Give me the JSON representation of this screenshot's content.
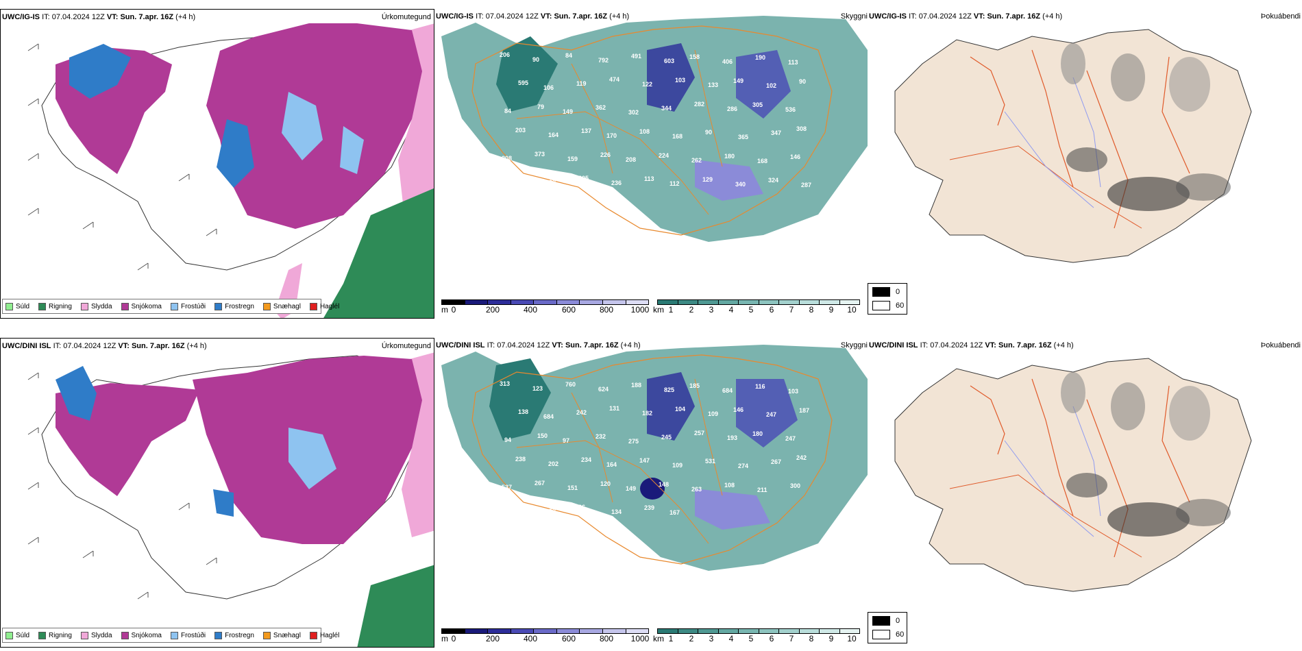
{
  "rows": [
    {
      "model": "UWC/IG-IS",
      "it_label": "IT:",
      "it_value": "07.04.2024 12Z",
      "vt_label": "VT:",
      "vt_value": "Sun. 7.apr. 16Z",
      "lead": "(+4 h)"
    },
    {
      "model": "UWC/DINI ISL",
      "it_label": "IT:",
      "it_value": "07.04.2024 12Z",
      "vt_label": "VT:",
      "vt_value": "Sun. 7.apr. 16Z",
      "lead": "(+4 h)"
    }
  ],
  "titles": {
    "precip_type": "Úrkomutegund",
    "visibility": "Skyggni",
    "fog": "Þokuábendi"
  },
  "precip_legend": [
    {
      "label": "Súld",
      "color": "#90ee90"
    },
    {
      "label": "Rigning",
      "color": "#2e8b57"
    },
    {
      "label": "Slydda",
      "color": "#f0a8d8"
    },
    {
      "label": "Snjókoma",
      "color": "#b03a96"
    },
    {
      "label": "Frostúði",
      "color": "#8ec3f0"
    },
    {
      "label": "Frostregn",
      "color": "#2f7cc8"
    },
    {
      "label": "Snæhagl",
      "color": "#f39a1e"
    },
    {
      "label": "Haglél",
      "color": "#e02020"
    }
  ],
  "ceiling_bar": {
    "unit": "m",
    "ticks": [
      "0",
      "200",
      "400",
      "600",
      "800",
      "1000"
    ],
    "colors": [
      "#000000",
      "#1a1a7a",
      "#2d2d9a",
      "#4a4ab5",
      "#6a6ac8",
      "#8b8bd8",
      "#a8a8e2",
      "#c5c5ec",
      "#ddddf5"
    ]
  },
  "vis_bar": {
    "unit": "km",
    "ticks": [
      "1",
      "2",
      "3",
      "4",
      "5",
      "6",
      "7",
      "8",
      "9",
      "10"
    ],
    "colors": [
      "#2a7a74",
      "#3d8a84",
      "#4f9993",
      "#63a8a2",
      "#78b6b1",
      "#8dc4bf",
      "#a3d1cd",
      "#b9dedb",
      "#cfe9e7",
      "#e6f4f2"
    ]
  },
  "cloud_legend": {
    "values": [
      "0",
      "60"
    ],
    "colors": [
      "#000000",
      "#ffffff"
    ]
  },
  "ceiling_labels_top": [
    "206",
    "90",
    "84",
    "792",
    "491",
    "603",
    "158",
    "406",
    "190",
    "113",
    "595",
    "106",
    "119",
    "474",
    "122",
    "103",
    "133",
    "149",
    "102",
    "90",
    "84",
    "79",
    "149",
    "362",
    "302",
    "344",
    "282",
    "286",
    "305",
    "536",
    "203",
    "164",
    "137",
    "170",
    "108",
    "168",
    "90",
    "365",
    "347",
    "308",
    "208",
    "373",
    "159",
    "226",
    "208",
    "224",
    "262",
    "180",
    "168",
    "146",
    "234",
    "190",
    "305",
    "236",
    "113",
    "112",
    "129",
    "340",
    "324",
    "287"
  ],
  "ceiling_labels_bottom": [
    "313",
    "123",
    "760",
    "624",
    "188",
    "825",
    "185",
    "684",
    "116",
    "103",
    "138",
    "684",
    "242",
    "131",
    "182",
    "104",
    "109",
    "146",
    "247",
    "187",
    "94",
    "150",
    "97",
    "232",
    "275",
    "245",
    "257",
    "193",
    "180",
    "247",
    "238",
    "202",
    "234",
    "164",
    "147",
    "109",
    "531",
    "274",
    "267",
    "242",
    "537",
    "267",
    "151",
    "120",
    "149",
    "148",
    "263",
    "108",
    "211",
    "300",
    "244",
    "152",
    "96",
    "134",
    "239",
    "167"
  ]
}
